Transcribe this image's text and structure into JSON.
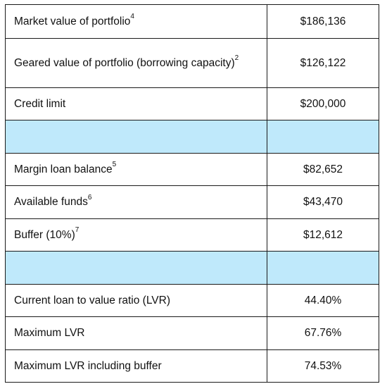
{
  "rows": [
    {
      "type": "data",
      "label": "Market value of portfolio",
      "note": "4",
      "value": "$186,136",
      "height": 48
    },
    {
      "type": "data",
      "label": "Geared value of portfolio (borrowing capacity)",
      "note": "2",
      "value": "$126,122",
      "height": 70
    },
    {
      "type": "data",
      "label": "Credit limit",
      "note": "",
      "value": "$200,000",
      "height": 46
    },
    {
      "type": "spacer",
      "height": 47
    },
    {
      "type": "data",
      "label": "Margin loan balance",
      "note": "5",
      "value": "$82,652",
      "height": 46
    },
    {
      "type": "data",
      "label": "Available funds",
      "note": "6",
      "value": "$43,470",
      "height": 47
    },
    {
      "type": "data",
      "label": "Buffer (10%)",
      "note": "7",
      "value": "$12,612",
      "height": 46
    },
    {
      "type": "spacer",
      "height": 47
    },
    {
      "type": "data",
      "label": "Current loan to value ratio (LVR)",
      "note": "",
      "value": "44.40%",
      "height": 46
    },
    {
      "type": "data",
      "label": "Maximum LVR",
      "note": "",
      "value": "67.76%",
      "height": 47
    },
    {
      "type": "data",
      "label": "Maximum LVR including buffer",
      "note": "",
      "value": "74.53%",
      "height": 46
    }
  ],
  "colors": {
    "border": "#1a1a1a",
    "spacer_fill": "#bfe9fb",
    "text": "#111111"
  }
}
